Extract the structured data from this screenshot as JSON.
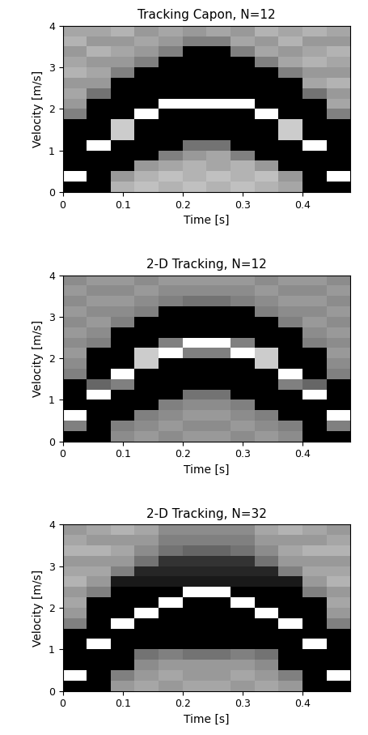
{
  "chart_data": [
    {
      "type": "heatmap",
      "title": "Tracking Capon, N=12",
      "x_label": "Time [s]",
      "y_label": "Velocity [m/s]",
      "color": "gray",
      "value_range": [
        0,
        1
      ],
      "xlim": [
        0,
        0.48
      ],
      "ylim": [
        0,
        4
      ],
      "xticks": [
        0,
        0.1,
        0.2,
        0.3,
        0.4
      ],
      "yticks": [
        0,
        1,
        2,
        3,
        4
      ],
      "x": [
        0.02,
        0.06,
        0.1,
        0.14,
        0.18,
        0.22,
        0.26,
        0.3,
        0.34,
        0.38,
        0.42,
        0.46
      ],
      "y": [
        0.125,
        0.375,
        0.625,
        0.875,
        1.125,
        1.375,
        1.625,
        1.875,
        2.125,
        2.375,
        2.625,
        2.875,
        3.125,
        3.375,
        3.625,
        3.875
      ],
      "cells": [
        [
          0,
          0,
          0.7,
          0.75,
          0.7,
          0.75,
          0.7,
          0.75,
          0.7,
          0.65,
          0,
          0
        ],
        [
          1,
          0,
          0.6,
          0.7,
          0.75,
          0.7,
          0.75,
          0.7,
          0.75,
          0.6,
          0,
          1
        ],
        [
          0,
          0,
          0,
          0.6,
          0.65,
          0.7,
          0.65,
          0.7,
          0.6,
          0,
          0,
          0
        ],
        [
          0,
          0,
          0,
          0,
          0.5,
          0.6,
          0.65,
          0.5,
          0,
          0,
          0,
          0
        ],
        [
          0,
          1,
          0,
          0,
          0,
          0.45,
          0.45,
          0,
          0,
          0,
          1,
          0
        ],
        [
          0,
          0,
          0.8,
          0,
          0,
          0,
          0,
          0,
          0,
          0.8,
          0,
          0
        ],
        [
          0,
          0,
          0.8,
          0,
          0,
          0,
          0,
          0,
          0,
          0.8,
          0,
          0
        ],
        [
          0.5,
          0,
          0,
          1,
          0,
          0,
          0,
          0,
          1,
          0,
          0,
          0.5
        ],
        [
          0.6,
          0,
          0,
          0,
          1,
          1,
          1,
          1,
          0,
          0,
          0,
          0.65
        ],
        [
          0.65,
          0.45,
          0,
          0,
          0,
          0,
          0,
          0,
          0,
          0,
          0.45,
          0.6
        ],
        [
          0.6,
          0.6,
          0,
          0,
          0,
          0,
          0,
          0,
          0,
          0,
          0.65,
          0.7
        ],
        [
          0.7,
          0.65,
          0.5,
          0,
          0,
          0,
          0,
          0,
          0,
          0.5,
          0.6,
          0.6
        ],
        [
          0.65,
          0.6,
          0.6,
          0.5,
          0,
          0,
          0,
          0,
          0.5,
          0.65,
          0.7,
          0.65
        ],
        [
          0.6,
          0.7,
          0.65,
          0.6,
          0.5,
          0,
          0,
          0.5,
          0.65,
          0.6,
          0.65,
          0.7
        ],
        [
          0.7,
          0.6,
          0.6,
          0.65,
          0.6,
          0.5,
          0.5,
          0.65,
          0.6,
          0.7,
          0.6,
          0.6
        ],
        [
          0.65,
          0.65,
          0.7,
          0.6,
          0.65,
          0.6,
          0.65,
          0.6,
          0.7,
          0.65,
          0.7,
          0.65
        ]
      ]
    },
    {
      "type": "heatmap",
      "title": "2-D Tracking, N=12",
      "x_label": "Time [s]",
      "y_label": "Velocity [m/s]",
      "color": "gray",
      "value_range": [
        0,
        1
      ],
      "xlim": [
        0,
        0.48
      ],
      "ylim": [
        0,
        4
      ],
      "xticks": [
        0,
        0.1,
        0.2,
        0.3,
        0.4
      ],
      "yticks": [
        0,
        1,
        2,
        3,
        4
      ],
      "x": [
        0.02,
        0.06,
        0.1,
        0.14,
        0.18,
        0.22,
        0.26,
        0.3,
        0.34,
        0.38,
        0.42,
        0.46
      ],
      "y": [
        0.125,
        0.375,
        0.625,
        0.875,
        1.125,
        1.375,
        1.625,
        1.875,
        2.125,
        2.375,
        2.625,
        2.875,
        3.125,
        3.375,
        3.625,
        3.875
      ],
      "cells": [
        [
          0,
          0,
          0.55,
          0.6,
          0.55,
          0.6,
          0.6,
          0.55,
          0.6,
          0.55,
          0,
          0
        ],
        [
          0.5,
          0,
          0.5,
          0.55,
          0.6,
          0.55,
          0.55,
          0.6,
          0.55,
          0.5,
          0,
          0.5
        ],
        [
          1,
          0,
          0,
          0.5,
          0.55,
          0.6,
          0.6,
          0.55,
          0.5,
          0,
          0,
          1
        ],
        [
          0,
          0,
          0,
          0,
          0.5,
          0.55,
          0.55,
          0.5,
          0,
          0,
          0,
          0
        ],
        [
          0,
          1,
          0,
          0,
          0,
          0.45,
          0.45,
          0,
          0,
          0,
          1,
          0
        ],
        [
          0,
          0.4,
          0.5,
          0,
          0,
          0,
          0,
          0,
          0,
          0.5,
          0.4,
          0
        ],
        [
          0.5,
          0,
          1,
          0,
          0,
          0,
          0,
          0,
          0,
          1,
          0,
          0.5
        ],
        [
          0.55,
          0,
          0,
          0.8,
          0,
          0,
          0,
          0,
          0.8,
          0,
          0,
          0.55
        ],
        [
          0.6,
          0,
          0,
          0.8,
          1,
          0.5,
          0.5,
          1,
          0.8,
          0,
          0,
          0.6
        ],
        [
          0.55,
          0.5,
          0,
          0,
          0.5,
          1,
          1,
          0.5,
          0,
          0,
          0.5,
          0.55
        ],
        [
          0.6,
          0.55,
          0,
          0,
          0,
          0,
          0,
          0,
          0,
          0,
          0.55,
          0.6
        ],
        [
          0.55,
          0.6,
          0.5,
          0,
          0,
          0,
          0,
          0,
          0,
          0.5,
          0.6,
          0.55
        ],
        [
          0.6,
          0.55,
          0.55,
          0.5,
          0,
          0,
          0,
          0,
          0.5,
          0.55,
          0.55,
          0.6
        ],
        [
          0.55,
          0.6,
          0.6,
          0.55,
          0.5,
          0.45,
          0.45,
          0.5,
          0.55,
          0.6,
          0.6,
          0.55
        ],
        [
          0.6,
          0.55,
          0.55,
          0.6,
          0.55,
          0.55,
          0.55,
          0.55,
          0.6,
          0.55,
          0.55,
          0.6
        ],
        [
          0.55,
          0.6,
          0.6,
          0.55,
          0.6,
          0.6,
          0.6,
          0.6,
          0.55,
          0.6,
          0.6,
          0.55
        ]
      ]
    },
    {
      "type": "heatmap",
      "title": "2-D Tracking, N=32",
      "x_label": "Time [s]",
      "y_label": "Velocity [m/s]",
      "color": "gray",
      "value_range": [
        0,
        1
      ],
      "xlim": [
        0,
        0.48
      ],
      "ylim": [
        0,
        4
      ],
      "xticks": [
        0,
        0.1,
        0.2,
        0.3,
        0.4
      ],
      "yticks": [
        0,
        1,
        2,
        3,
        4
      ],
      "x": [
        0.02,
        0.06,
        0.1,
        0.14,
        0.18,
        0.22,
        0.26,
        0.3,
        0.34,
        0.38,
        0.42,
        0.46
      ],
      "y": [
        0.125,
        0.375,
        0.625,
        0.875,
        1.125,
        1.375,
        1.625,
        1.875,
        2.125,
        2.375,
        2.625,
        2.875,
        3.125,
        3.375,
        3.625,
        3.875
      ],
      "cells": [
        [
          0,
          0,
          0.6,
          0.65,
          0.6,
          0.65,
          0.65,
          0.6,
          0.65,
          0.6,
          0,
          0
        ],
        [
          1,
          0,
          0.5,
          0.6,
          0.65,
          0.6,
          0.6,
          0.65,
          0.6,
          0.5,
          0,
          1
        ],
        [
          0,
          0,
          0,
          0.55,
          0.6,
          0.6,
          0.6,
          0.6,
          0.55,
          0,
          0,
          0
        ],
        [
          0,
          0,
          0,
          0.45,
          0.5,
          0.45,
          0.45,
          0.5,
          0.45,
          0,
          0,
          0
        ],
        [
          0,
          1,
          0,
          0,
          0,
          0,
          0,
          0,
          0,
          0,
          1,
          0
        ],
        [
          0,
          0,
          0,
          0,
          0,
          0,
          0,
          0,
          0,
          0,
          0,
          0
        ],
        [
          0.5,
          0,
          1,
          0,
          0,
          0,
          0,
          0,
          0,
          1,
          0,
          0.5
        ],
        [
          0.6,
          0,
          0,
          1,
          0,
          0,
          0,
          0,
          1,
          0,
          0,
          0.6
        ],
        [
          0.65,
          0,
          0,
          0,
          1,
          0,
          0,
          1,
          0,
          0,
          0,
          0.65
        ],
        [
          0.6,
          0.5,
          0,
          0,
          0,
          1,
          1,
          0,
          0,
          0,
          0.5,
          0.6
        ],
        [
          0.7,
          0.6,
          0.1,
          0.1,
          0.1,
          0.1,
          0.1,
          0.1,
          0.1,
          0.1,
          0.6,
          0.7
        ],
        [
          0.65,
          0.65,
          0.5,
          0.15,
          0.15,
          0.15,
          0.15,
          0.15,
          0.15,
          0.5,
          0.65,
          0.65
        ],
        [
          0.6,
          0.6,
          0.6,
          0.45,
          0.2,
          0.2,
          0.2,
          0.2,
          0.45,
          0.6,
          0.6,
          0.6
        ],
        [
          0.7,
          0.7,
          0.65,
          0.55,
          0.45,
          0.4,
          0.4,
          0.45,
          0.55,
          0.65,
          0.7,
          0.7
        ],
        [
          0.65,
          0.6,
          0.6,
          0.6,
          0.5,
          0.5,
          0.5,
          0.5,
          0.6,
          0.6,
          0.6,
          0.65
        ],
        [
          0.6,
          0.65,
          0.7,
          0.65,
          0.55,
          0.55,
          0.55,
          0.55,
          0.65,
          0.7,
          0.65,
          0.6
        ]
      ]
    }
  ]
}
